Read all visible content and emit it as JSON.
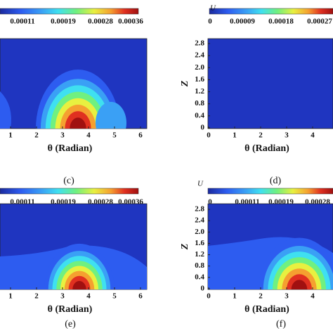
{
  "panels": [
    {
      "caption": "(c)",
      "colorbar": {
        "ticks": [
          0.00011,
          0.00019,
          0.00028,
          0.00036
        ]
      },
      "xticks": [
        1,
        2,
        3,
        4,
        5,
        6
      ],
      "xlabel": "θ (Radian)"
    },
    {
      "caption": "(d)",
      "colorbar": {
        "symbol": "U",
        "ticks": [
          0,
          9e-05,
          0.00018,
          0.00027
        ]
      },
      "xticks": [
        0,
        1,
        2,
        3,
        4
      ],
      "yticks": [
        0,
        0.4,
        0.8,
        1.2,
        1.6,
        {
          "value": 2,
          "label": "2.0"
        },
        2.4,
        2.8
      ],
      "xlabel": "θ (Radian)",
      "ylabel": "Z"
    },
    {
      "caption": "(e)",
      "colorbar": {
        "ticks": [
          0.00011,
          0.00019,
          0.00028,
          0.00036
        ]
      },
      "xticks": [
        1,
        2,
        3,
        4,
        5,
        6
      ],
      "xlabel": "θ (Radian)"
    },
    {
      "caption": "(f)",
      "colorbar": {
        "symbol": "U",
        "ticks": [
          0,
          0.00011,
          0.00019,
          0.00028
        ]
      },
      "xticks": [
        0,
        1,
        2,
        3,
        4
      ],
      "yticks": [
        0,
        0.4,
        0.8,
        1.2,
        1.6,
        {
          "value": 2,
          "label": "2.0"
        },
        2.4,
        2.8
      ],
      "xlabel": "θ (Radian)",
      "ylabel": "Z"
    }
  ]
}
